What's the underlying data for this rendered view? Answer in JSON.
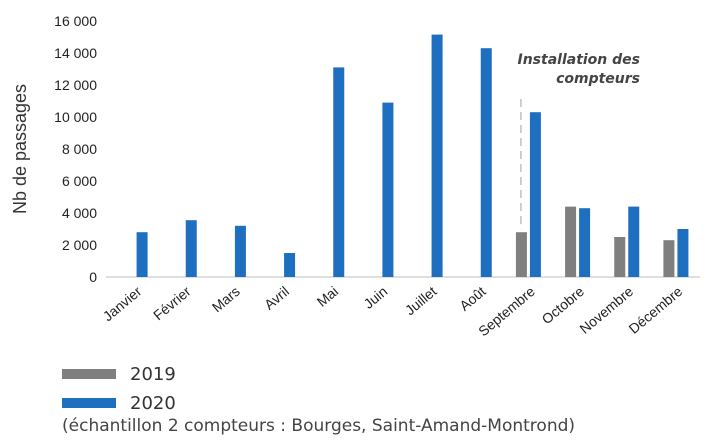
{
  "colors": {
    "s2019": "#7f7f7f",
    "s2020": "#1f6fc0",
    "axis": "#bfbfbf",
    "annot_line": "#b0b0b0"
  },
  "chart_data": {
    "type": "bar",
    "categories": [
      "Janvier",
      "Février",
      "Mars",
      "Avril",
      "Mai",
      "Juin",
      "Juillet",
      "Août",
      "Septembre",
      "Octobre",
      "Novembre",
      "Décembre"
    ],
    "series": [
      {
        "name": "2019",
        "values": [
          null,
          null,
          null,
          null,
          null,
          null,
          null,
          null,
          2800,
          4400,
          2500,
          2300
        ]
      },
      {
        "name": "2020",
        "values": [
          2800,
          3550,
          3200,
          1500,
          13100,
          10900,
          15150,
          14300,
          10300,
          4300,
          4400,
          3000
        ]
      }
    ],
    "ylabel": "Nb de passages",
    "ylim": [
      0,
      16000
    ],
    "yticks": [
      0,
      2000,
      4000,
      6000,
      8000,
      10000,
      12000,
      14000,
      16000
    ],
    "ytick_labels": [
      "0",
      "2 000",
      "4 000",
      "6 000",
      "8 000",
      "10 000",
      "12 000",
      "14 000",
      "16 000"
    ],
    "annotation": {
      "lines": [
        "Installation des",
        "compteurs"
      ],
      "category": "Septembre"
    },
    "legend": [
      "2019",
      "2020"
    ],
    "legend_position": "bottom-left",
    "source_note": "(échantillon 2 compteurs :  Bourges, Saint-Amand-Montrond)"
  }
}
